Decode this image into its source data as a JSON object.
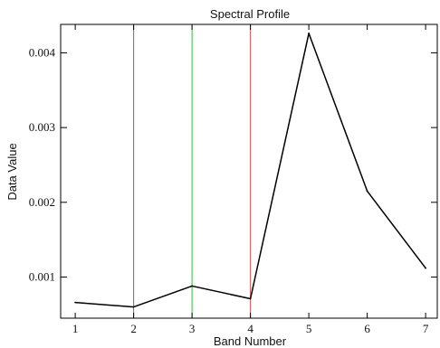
{
  "chart_data": {
    "type": "line",
    "title": "Spectral Profile",
    "xlabel": "Band Number",
    "ylabel": "Data Value",
    "x": [
      1,
      2,
      3,
      4,
      5,
      6,
      7
    ],
    "series": [
      {
        "values": [
          0.00066,
          0.0006,
          0.00088,
          0.00071,
          0.00426,
          0.00215,
          0.00112
        ],
        "color": "#000000"
      }
    ],
    "xlim": [
      0.75,
      7.2
    ],
    "ylim": [
      0.00045,
      0.00438
    ],
    "xticks": [
      1,
      2,
      3,
      4,
      5,
      6,
      7
    ],
    "xtick_labels": [
      "1",
      "2",
      "3",
      "4",
      "5",
      "6",
      "7"
    ],
    "yticks": [
      0.001,
      0.002,
      0.003,
      0.004
    ],
    "ytick_labels": [
      "0.001",
      "0.002",
      "0.003",
      "0.004"
    ],
    "markers": [
      {
        "x": 2,
        "color": "#6060d8"
      },
      {
        "x": 3,
        "color": "#2fbf3f"
      },
      {
        "x": 4,
        "color": "#e05050"
      }
    ],
    "grid": false,
    "legend": "none"
  }
}
